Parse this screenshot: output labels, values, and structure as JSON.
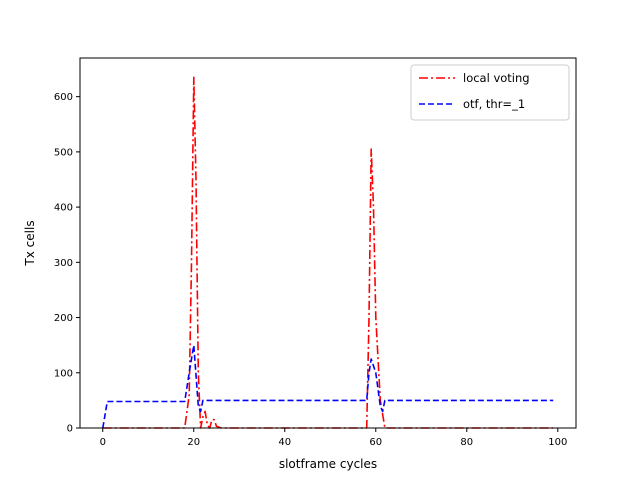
{
  "chart_data": {
    "type": "line",
    "title": "",
    "xlabel": "slotframe cycles",
    "ylabel": "Tx cells",
    "xlim": [
      -5,
      104
    ],
    "ylim": [
      0,
      670
    ],
    "xticks": [
      0,
      20,
      40,
      60,
      80,
      100
    ],
    "yticks": [
      0,
      100,
      200,
      300,
      400,
      500,
      600
    ],
    "grid": false,
    "legend_position": "top-right",
    "series": [
      {
        "name": "local voting",
        "color": "#ff0000",
        "dash": "dashdot",
        "points": [
          [
            0,
            0
          ],
          [
            17,
            0
          ],
          [
            18,
            0
          ],
          [
            19,
            60
          ],
          [
            19.5,
            300
          ],
          [
            20,
            635
          ],
          [
            20.5,
            450
          ],
          [
            21,
            100
          ],
          [
            21.5,
            0
          ],
          [
            22,
            20
          ],
          [
            22.5,
            30
          ],
          [
            23,
            5
          ],
          [
            23.5,
            0
          ],
          [
            24,
            15
          ],
          [
            24.5,
            15
          ],
          [
            25,
            3
          ],
          [
            26,
            0
          ],
          [
            57,
            0
          ],
          [
            58,
            0
          ],
          [
            58.5,
            200
          ],
          [
            59,
            505
          ],
          [
            59.5,
            400
          ],
          [
            60,
            200
          ],
          [
            61,
            50
          ],
          [
            62,
            0
          ],
          [
            99,
            0
          ]
        ]
      },
      {
        "name": "otf, thr=_1",
        "color": "#0000ff",
        "dash": "dashed",
        "points": [
          [
            0,
            0
          ],
          [
            1,
            48
          ],
          [
            18,
            48
          ],
          [
            19,
            100
          ],
          [
            20,
            150
          ],
          [
            21,
            40
          ],
          [
            21.5,
            30
          ],
          [
            22,
            50
          ],
          [
            58,
            50
          ],
          [
            58.5,
            100
          ],
          [
            59,
            125
          ],
          [
            60,
            100
          ],
          [
            61,
            40
          ],
          [
            61.5,
            30
          ],
          [
            62,
            50
          ],
          [
            99,
            50
          ]
        ]
      }
    ]
  }
}
